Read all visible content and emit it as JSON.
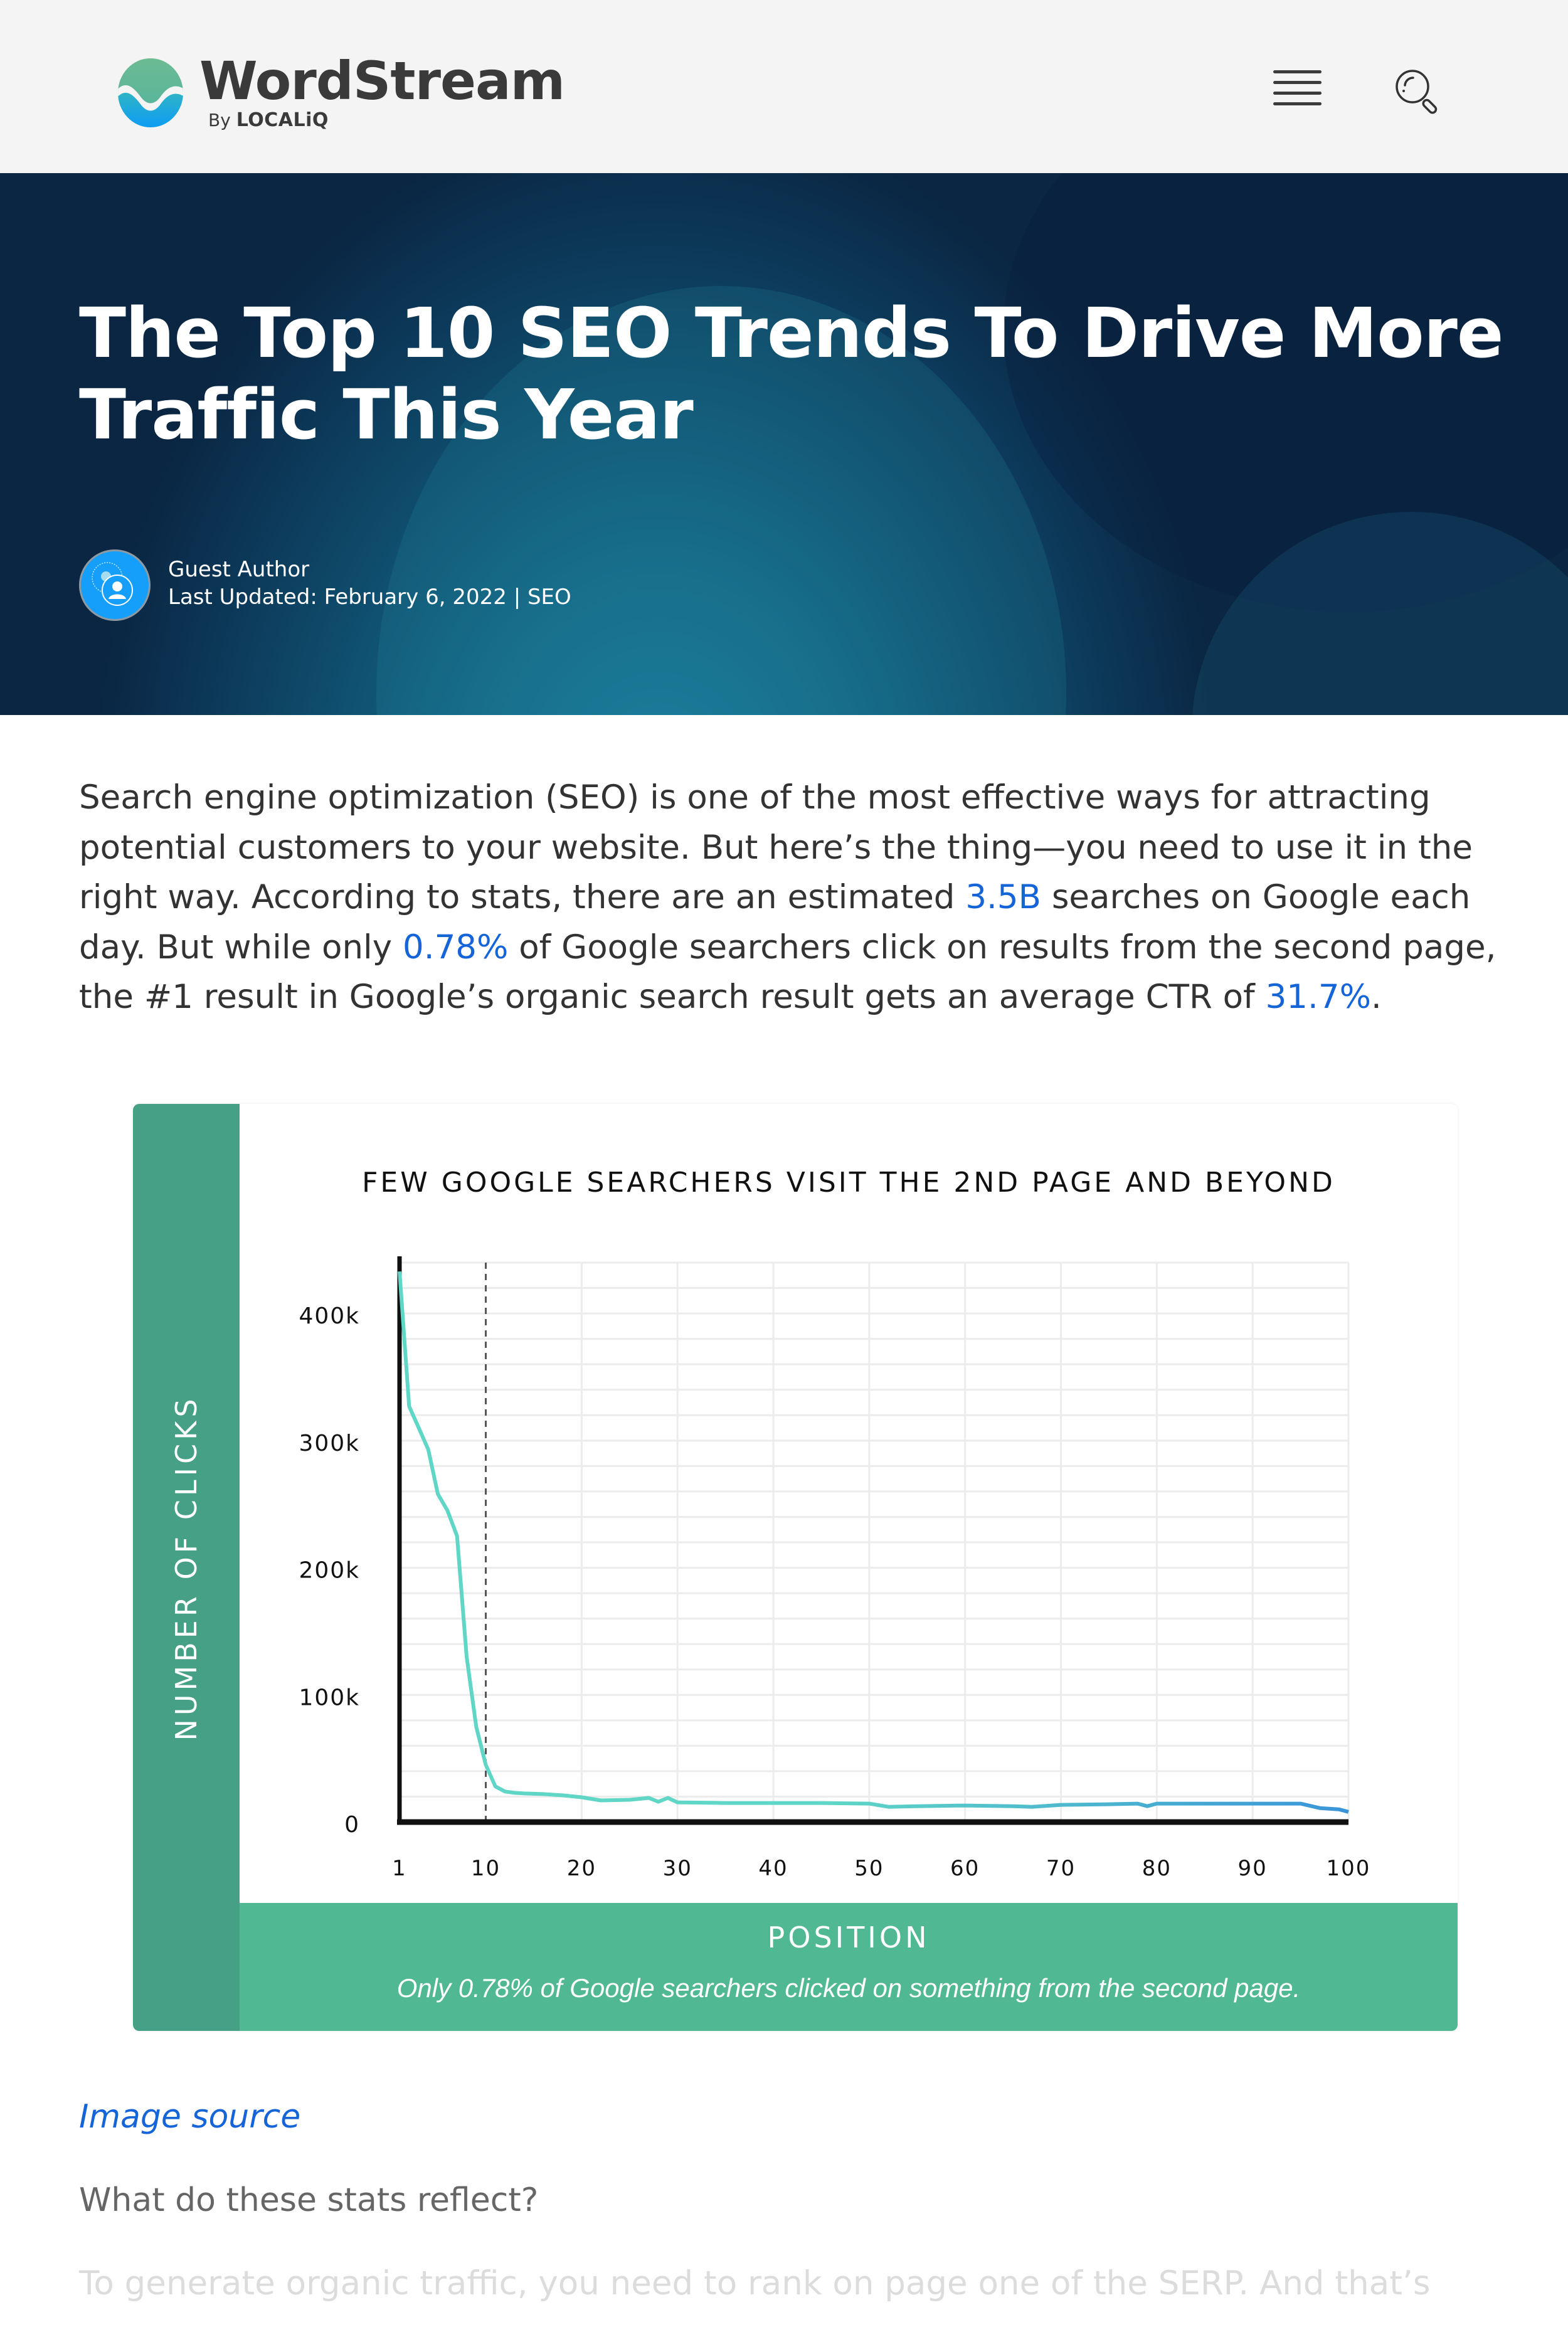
{
  "header": {
    "logo_word": "WordStream",
    "logo_by": "By",
    "logo_brand": "LOCALiQ",
    "menu_icon": "hamburger-menu-icon",
    "search_icon": "search-icon"
  },
  "hero": {
    "title": "The Top 10 SEO Trends To Drive More Traffic This Year",
    "author": "Guest Author",
    "updated_prefix": "Last Updated:",
    "updated_date": "February 6, 2022",
    "separator": "|",
    "category": "SEO"
  },
  "article": {
    "intro_parts": [
      "Search engine optimization (SEO) is one of the most effective ways for attracting potential customers to your website. But here’s the thing—you need to use it in the right way. According to stats, there are an estimated ",
      "3.5B",
      " searches on Google each day. But while only ",
      "0.78%",
      " of Google searchers click on results from the second page, the #1 result in Google’s organic search result gets an average CTR of ",
      "31.7%",
      "."
    ],
    "image_source_label": "Image source",
    "question": "What do these stats reflect?",
    "faded_line": "To generate organic traffic, you need to rank on page one of the SERP. And that’s"
  },
  "colors": {
    "link": "#1565d8",
    "chart_side_green": "#46a085",
    "chart_bottom_green": "#50b893",
    "line_start": "#5fd6c6",
    "line_end": "#3a95d8"
  },
  "chart_data": {
    "type": "line",
    "title": "FEW GOOGLE SEARCHERS VISIT THE 2ND PAGE AND BEYOND",
    "xlabel": "POSITION",
    "ylabel": "NUMBER OF CLICKS",
    "caption": "Only 0.78% of Google searchers clicked on something from the second page.",
    "x_ticks": [
      "1",
      "10",
      "20",
      "30",
      "40",
      "50",
      "60",
      "70",
      "80",
      "90",
      "100"
    ],
    "y_ticks": [
      "0",
      "100k",
      "200k",
      "300k",
      "400k"
    ],
    "xlim": [
      1,
      100
    ],
    "ylim": [
      0,
      440000
    ],
    "grid": true,
    "reference_line": {
      "x": 10,
      "style": "dashed",
      "meaning": "end of page one"
    },
    "series": [
      {
        "name": "Clicks",
        "x": [
          1,
          2,
          3,
          4,
          5,
          6,
          7,
          8,
          9,
          10,
          11,
          12,
          13,
          14,
          16,
          18,
          20,
          22,
          25,
          27,
          28,
          29,
          30,
          35,
          40,
          45,
          50,
          52,
          55,
          60,
          65,
          67,
          70,
          75,
          78,
          79,
          80,
          85,
          90,
          95,
          97,
          99,
          100
        ],
        "y": [
          433000,
          327000,
          310000,
          293000,
          258000,
          245000,
          225000,
          130000,
          75000,
          45000,
          28000,
          24000,
          23000,
          22500,
          22000,
          21000,
          19500,
          17000,
          17500,
          19000,
          16000,
          19000,
          15500,
          15000,
          15000,
          15000,
          14500,
          12000,
          12500,
          13000,
          12500,
          12000,
          13500,
          14000,
          14500,
          12500,
          14500,
          14500,
          14500,
          14500,
          11000,
          10000,
          8000
        ]
      }
    ]
  }
}
